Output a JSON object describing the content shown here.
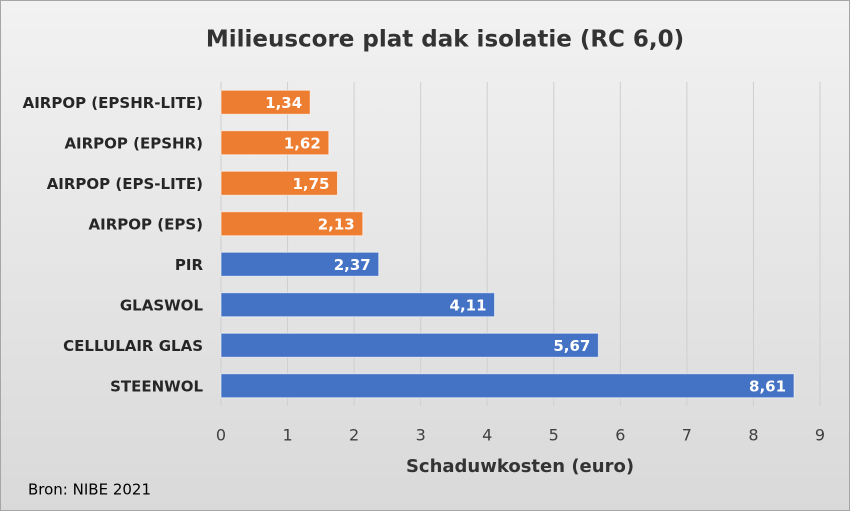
{
  "chart_data": {
    "type": "hbar",
    "title": "Milieuscore plat dak isolatie (RC 6,0)",
    "x_label": "Schaduwkosten (euro)",
    "source": "Bron: NIBE 2021",
    "categories": [
      "AIRPOP (EPSHR-LITE)",
      "AIRPOP (EPSHR)",
      "AIRPOP (EPS-LITE)",
      "AIRPOP (EPS)",
      "PIR",
      "GLASWOL",
      "CELLULAIR GLAS",
      "STEENWOL"
    ],
    "values": [
      1.34,
      1.62,
      1.75,
      2.13,
      2.37,
      4.11,
      5.67,
      8.61
    ],
    "value_labels": [
      "1,34",
      "1,62",
      "1,75",
      "2,13",
      "2,37",
      "4,11",
      "5,67",
      "8,61"
    ],
    "colors": [
      "#ed7d31",
      "#ed7d31",
      "#ed7d31",
      "#ed7d31",
      "#4472c4",
      "#4472c4",
      "#4472c4",
      "#4472c4"
    ],
    "xlim": [
      0,
      9
    ],
    "xticks": [
      0,
      1,
      2,
      3,
      4,
      5,
      6,
      7,
      8,
      9
    ],
    "grid": true
  }
}
